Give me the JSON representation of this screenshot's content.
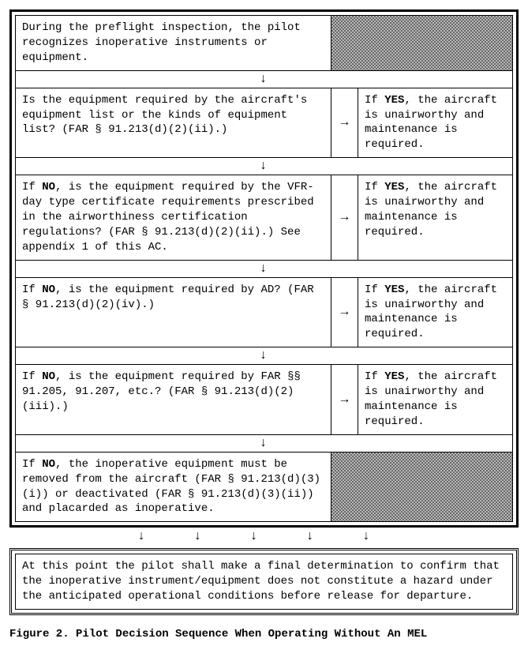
{
  "flowchart": {
    "type": "flowchart",
    "background_color": "#ffffff",
    "border_color": "#000000",
    "gray_pattern_colors": [
      "#666666",
      "#bbbbbb"
    ],
    "font_family": "Courier New",
    "font_size_pt": 11,
    "down_arrow_glyph": "↓",
    "right_arrow_glyph": "→",
    "multi_down_arrows": "↓  ↓  ↓  ↓  ↓",
    "steps": [
      {
        "question": "During the preflight inspection, the pilot recognizes inoperative instruments or equipment.",
        "has_answer": false
      },
      {
        "question_pre": "Is the equipment required by the aircraft's equipment list or the kinds of equipment list?  (FAR § 91.213(d)(2)(ii).)",
        "answer_pre": "If ",
        "answer_bold": "YES",
        "answer_post": ", the aircraft is unairworthy and maintenance is required.",
        "has_answer": true
      },
      {
        "question_pre": "If ",
        "question_bold": "NO",
        "question_post": ", is the equipment required by the VFR-day type certificate requirements prescribed in the airworthiness certification regulations?  (FAR § 91.213(d)(2)(ii).) See appendix 1 of this AC.",
        "answer_pre": "If ",
        "answer_bold": "YES",
        "answer_post": ", the aircraft is unairworthy and maintenance is required.",
        "has_answer": true
      },
      {
        "question_pre": "If ",
        "question_bold": "NO",
        "question_post": ", is the equipment required by AD? (FAR § 91.213(d)(2)(iv).)",
        "answer_pre": "If ",
        "answer_bold": "YES",
        "answer_post": ", the aircraft is unairworthy and maintenance is required.",
        "has_answer": true
      },
      {
        "question_pre": "If ",
        "question_bold": "NO",
        "question_post": ", is the equipment required by FAR §§ 91.205, 91.207, etc.?  (FAR § 91.213(d)(2)(iii).)",
        "answer_pre": "If ",
        "answer_bold": "YES",
        "answer_post": ", the aircraft is unairworthy and maintenance is required.",
        "has_answer": true
      },
      {
        "question_pre": "If ",
        "question_bold": "NO",
        "question_post": ", the inoperative equipment must be removed from the aircraft (FAR § 91.213(d)(3)(i)) or deactivated (FAR § 91.213(d)(3)(ii)) and placarded as inoperative.",
        "has_answer": false
      }
    ],
    "final_note": "At this point the pilot shall make a final determination to confirm that the inoperative instrument/equipment does not constitute a hazard under the anticipated operational conditions before release for departure."
  },
  "caption": "Figure 2.  Pilot Decision Sequence When Operating Without An MEL"
}
